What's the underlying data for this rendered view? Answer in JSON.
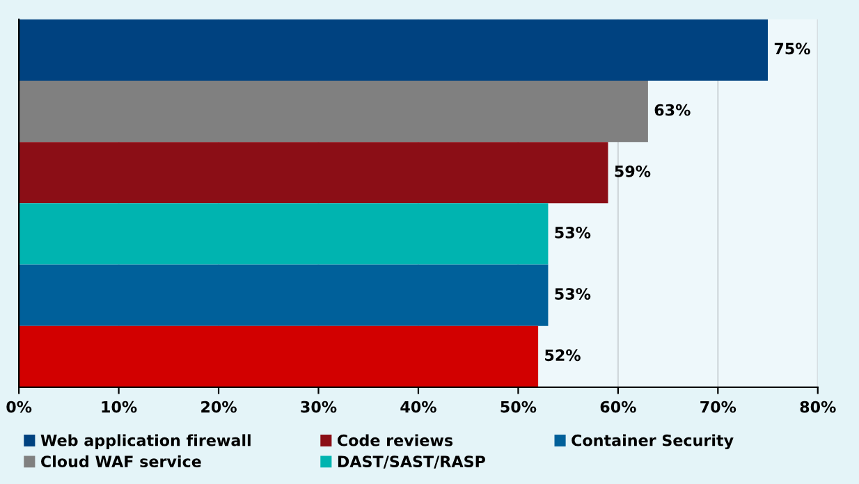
{
  "chart_data": {
    "type": "bar",
    "orientation": "horizontal",
    "categories": [
      null
    ],
    "series": [
      {
        "name": "Web application firewall",
        "color": "#004280",
        "values": [
          75
        ]
      },
      {
        "name": "Cloud WAF service",
        "color": "#808080",
        "values": [
          63
        ]
      },
      {
        "name": "Code reviews",
        "color": "#8b0e16",
        "values": [
          59
        ]
      },
      {
        "name": "DAST/SAST/RASP",
        "color": "#00b4b0",
        "values": [
          53
        ]
      },
      {
        "name": "Container Security",
        "color": "#00609a",
        "values": [
          53
        ]
      },
      {
        "color": "#d20000",
        "values": [
          52
        ]
      }
    ],
    "xlim": [
      0,
      80
    ],
    "xticks": [
      {
        "value": 0,
        "label": "0%"
      },
      {
        "value": 10,
        "label": "10%"
      },
      {
        "value": 20,
        "label": "20%"
      },
      {
        "value": 30,
        "label": "30%"
      },
      {
        "value": 40,
        "label": "40%"
      },
      {
        "value": 50,
        "label": "50%"
      },
      {
        "value": 60,
        "label": "60%"
      },
      {
        "value": 70,
        "label": "70%"
      },
      {
        "value": 80,
        "label": "80%"
      }
    ],
    "value_labels": [
      "75%",
      "63%",
      "59%",
      "53%",
      "53%",
      "52%"
    ],
    "grid": "x",
    "legend": "bottom"
  }
}
